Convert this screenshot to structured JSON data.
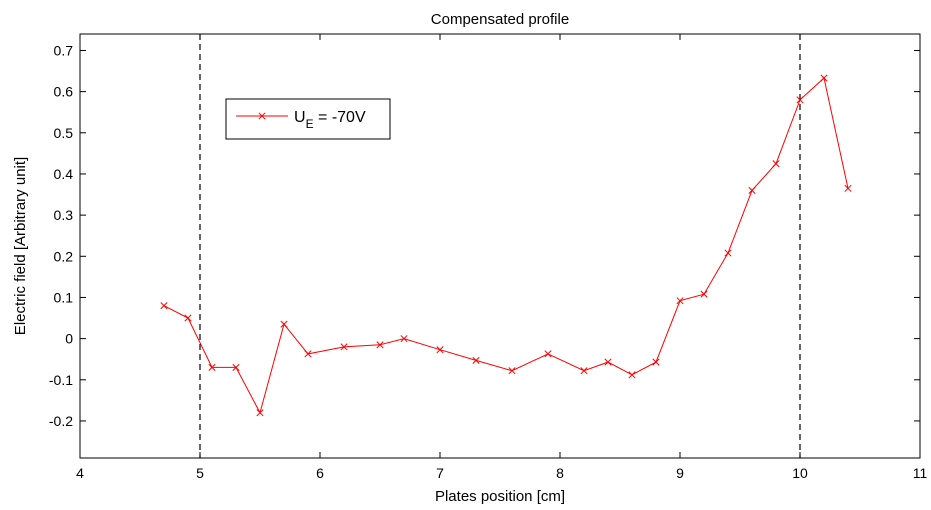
{
  "chart_data": {
    "type": "line",
    "title": "Compensated profile",
    "xlabel": "Plates position [cm]",
    "ylabel": "Electric field [Arbitrary unit]",
    "xlim": [
      4,
      11
    ],
    "ylim": [
      -0.29,
      0.74
    ],
    "xticks": [
      4,
      5,
      6,
      7,
      8,
      9,
      10,
      11
    ],
    "yticks": [
      -0.2,
      -0.1,
      0,
      0.1,
      0.2,
      0.3,
      0.4,
      0.5,
      0.6,
      0.7
    ],
    "ytick_labels": [
      "-0.2",
      "-0.1",
      "0",
      "0.1",
      "0.2",
      "0.3",
      "0.4",
      "0.5",
      "0.6",
      "0.7"
    ],
    "grid": false,
    "legend_position": "top-left",
    "vertical_lines": [
      5,
      10
    ],
    "series": [
      {
        "legend_main": "U",
        "legend_sub": "E",
        "legend_rest": " = -70V",
        "color": "#ff0000",
        "marker": "x",
        "x": [
          4.7,
          4.9,
          5.1,
          5.3,
          5.5,
          5.7,
          5.9,
          6.2,
          6.5,
          6.7,
          7.0,
          7.3,
          7.6,
          7.9,
          8.2,
          8.4,
          8.6,
          8.8,
          9.0,
          9.2,
          9.4,
          9.6,
          9.8,
          10.0,
          10.2,
          10.4
        ],
        "y": [
          0.08,
          0.05,
          -0.07,
          -0.07,
          -0.18,
          0.035,
          -0.037,
          -0.02,
          -0.015,
          0.0,
          -0.027,
          -0.053,
          -0.078,
          -0.037,
          -0.078,
          -0.057,
          -0.088,
          -0.057,
          0.092,
          0.108,
          0.208,
          0.36,
          0.425,
          0.58,
          0.633,
          0.365
        ]
      }
    ]
  }
}
